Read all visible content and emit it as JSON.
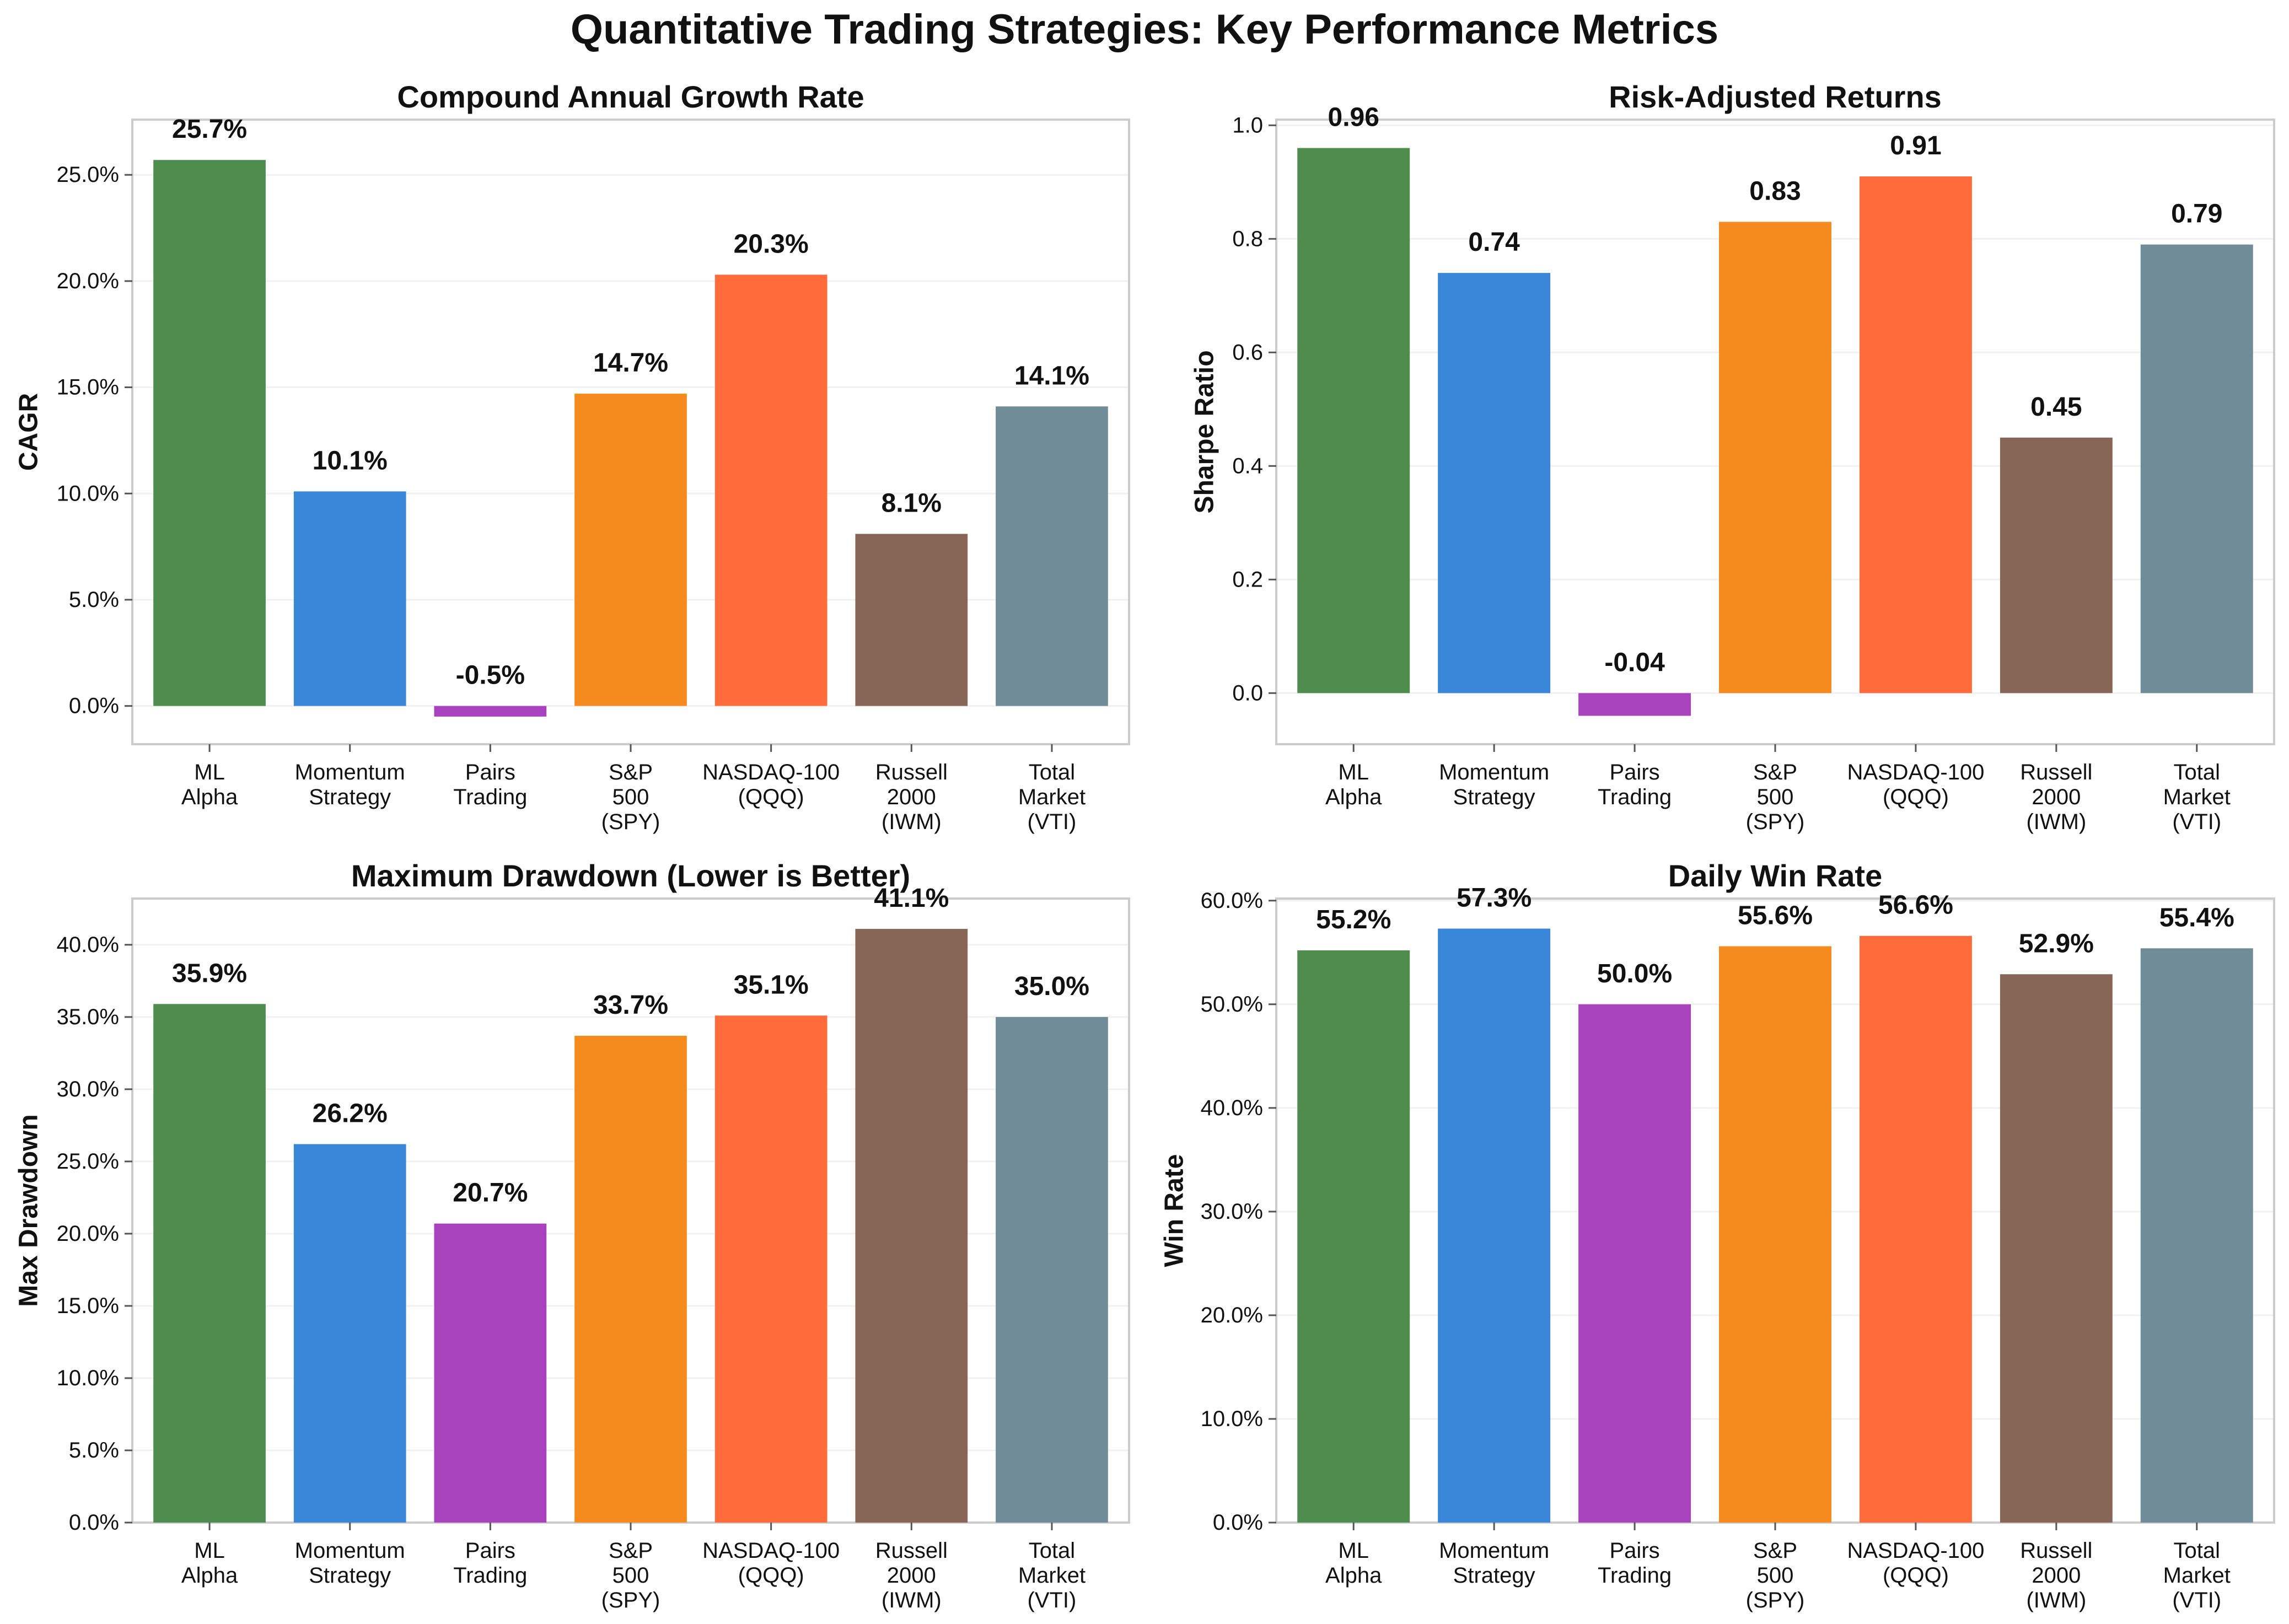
{
  "title": "Quantitative Trading Strategies: Key Performance Metrics",
  "colors": [
    "#4e8d4e",
    "#3a87d9",
    "#a843bd",
    "#f58a1f",
    "#ff6b3b",
    "#876657",
    "#718c99"
  ],
  "chart_data": [
    {
      "type": "bar",
      "title": "Compound Annual Growth Rate",
      "ylabel": "CAGR",
      "categories": [
        "ML\nAlpha",
        "Momentum\nStrategy",
        "Pairs\nTrading",
        "S&P\n500\n(SPY)",
        "NASDAQ-100\n(QQQ)",
        "Russell\n2000\n(IWM)",
        "Total\nMarket\n(VTI)"
      ],
      "values": [
        25.7,
        10.1,
        -0.5,
        14.7,
        20.3,
        8.1,
        14.1
      ],
      "value_labels": [
        "25.7%",
        "10.1%",
        "-0.5%",
        "14.7%",
        "20.3%",
        "8.1%",
        "14.1%"
      ],
      "yticks": [
        0,
        5,
        10,
        15,
        20,
        25
      ],
      "ytick_labels": [
        "0.0%",
        "5.0%",
        "10.0%",
        "15.0%",
        "20.0%",
        "25.0%"
      ],
      "ylim": [
        -1.8,
        27.6
      ],
      "grid": true
    },
    {
      "type": "bar",
      "title": "Risk-Adjusted Returns",
      "ylabel": "Sharpe Ratio",
      "categories": [
        "ML\nAlpha",
        "Momentum\nStrategy",
        "Pairs\nTrading",
        "S&P\n500\n(SPY)",
        "NASDAQ-100\n(QQQ)",
        "Russell\n2000\n(IWM)",
        "Total\nMarket\n(VTI)"
      ],
      "values": [
        0.96,
        0.74,
        -0.04,
        0.83,
        0.91,
        0.45,
        0.79
      ],
      "value_labels": [
        "0.96",
        "0.74",
        "-0.04",
        "0.83",
        "0.91",
        "0.45",
        "0.79"
      ],
      "yticks": [
        0,
        0.2,
        0.4,
        0.6,
        0.8,
        1.0
      ],
      "ytick_labels": [
        "0.0",
        "0.2",
        "0.4",
        "0.6",
        "0.8",
        "1.0"
      ],
      "ylim": [
        -0.09,
        1.01
      ],
      "grid": true
    },
    {
      "type": "bar",
      "title": "Maximum Drawdown (Lower is Better)",
      "ylabel": "Max Drawdown",
      "categories": [
        "ML\nAlpha",
        "Momentum\nStrategy",
        "Pairs\nTrading",
        "S&P\n500\n(SPY)",
        "NASDAQ-100\n(QQQ)",
        "Russell\n2000\n(IWM)",
        "Total\nMarket\n(VTI)"
      ],
      "values": [
        35.9,
        26.2,
        20.7,
        33.7,
        35.1,
        41.1,
        35.0
      ],
      "value_labels": [
        "35.9%",
        "26.2%",
        "20.7%",
        "33.7%",
        "35.1%",
        "41.1%",
        "35.0%"
      ],
      "yticks": [
        0,
        5,
        10,
        15,
        20,
        25,
        30,
        35,
        40
      ],
      "ytick_labels": [
        "0.0%",
        "5.0%",
        "10.0%",
        "15.0%",
        "20.0%",
        "25.0%",
        "30.0%",
        "35.0%",
        "40.0%"
      ],
      "ylim": [
        0,
        43.2
      ],
      "grid": true
    },
    {
      "type": "bar",
      "title": "Daily Win Rate",
      "ylabel": "Win Rate",
      "categories": [
        "ML\nAlpha",
        "Momentum\nStrategy",
        "Pairs\nTrading",
        "S&P\n500\n(SPY)",
        "NASDAQ-100\n(QQQ)",
        "Russell\n2000\n(IWM)",
        "Total\nMarket\n(VTI)"
      ],
      "values": [
        55.2,
        57.3,
        50.0,
        55.6,
        56.6,
        52.9,
        55.4
      ],
      "value_labels": [
        "55.2%",
        "57.3%",
        "50.0%",
        "55.6%",
        "56.6%",
        "52.9%",
        "55.4%"
      ],
      "yticks": [
        0,
        10,
        20,
        30,
        40,
        50,
        60
      ],
      "ytick_labels": [
        "0.0%",
        "10.0%",
        "20.0%",
        "30.0%",
        "40.0%",
        "50.0%",
        "60.0%"
      ],
      "ylim": [
        0,
        60.2
      ],
      "grid": true
    }
  ]
}
